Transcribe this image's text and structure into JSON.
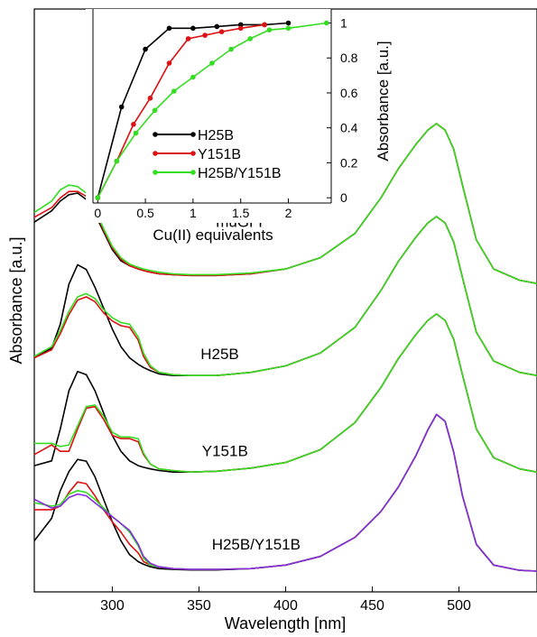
{
  "chart_data": [
    {
      "type": "line",
      "xlabel": "Wavelength [nm]",
      "ylabel": "Absorbance [a.u.]",
      "xlim": [
        255,
        545
      ],
      "x_ticks": [
        300,
        350,
        400,
        450,
        500
      ],
      "y_ticks_labeled": false,
      "grid": false,
      "offset_stacked": true,
      "x": [
        255,
        265,
        270,
        275,
        280,
        285,
        290,
        295,
        300,
        305,
        310,
        315,
        318,
        322,
        327,
        335,
        345,
        360,
        380,
        400,
        420,
        440,
        455,
        465,
        475,
        482,
        487,
        492,
        497,
        502,
        510,
        520,
        535,
        545
      ],
      "series": [
        {
          "key": "muGFP-Cu",
          "panel_label": "muGFP",
          "color": "#000000",
          "label_at_x": 375,
          "label_anchor": 0.35,
          "values": [
            0.39,
            0.46,
            0.52,
            0.56,
            0.57,
            0.53,
            0.44,
            0.33,
            0.22,
            0.15,
            0.12,
            0.1,
            0.09,
            0.08,
            0.07,
            0.065,
            0.06,
            0.06,
            0.07,
            0.1,
            0.17,
            0.32,
            0.54,
            0.72,
            0.87,
            0.96,
            1.0,
            0.96,
            0.84,
            0.62,
            0.28,
            0.1,
            0.03,
            0.01
          ]
        },
        {
          "key": "muGFP-Cu-red",
          "color": "#dd1111",
          "values": [
            0.42,
            0.48,
            0.54,
            0.58,
            0.58,
            0.55,
            0.46,
            0.34,
            0.23,
            0.16,
            0.12,
            0.1,
            0.09,
            0.08,
            0.07,
            0.065,
            0.06,
            0.06,
            0.07,
            0.1,
            0.17,
            0.32,
            0.54,
            0.72,
            0.87,
            0.96,
            1.0,
            0.96,
            0.84,
            0.62,
            0.28,
            0.1,
            0.03,
            0.01
          ]
        },
        {
          "key": "muGFP-Cu-green",
          "color": "#33dd22",
          "values": [
            0.45,
            0.52,
            0.59,
            0.62,
            0.61,
            0.57,
            0.47,
            0.35,
            0.24,
            0.17,
            0.13,
            0.11,
            0.1,
            0.09,
            0.08,
            0.07,
            0.065,
            0.065,
            0.075,
            0.1,
            0.17,
            0.32,
            0.54,
            0.72,
            0.87,
            0.96,
            1.0,
            0.96,
            0.84,
            0.62,
            0.28,
            0.1,
            0.03,
            0.01
          ]
        },
        {
          "key": "H25B-Cu",
          "panel_label": "H25B",
          "color": "#000000",
          "label_at_x": 362,
          "label_anchor": 0.1,
          "values": [
            0.12,
            0.18,
            0.33,
            0.58,
            0.7,
            0.67,
            0.56,
            0.43,
            0.3,
            0.19,
            0.12,
            0.08,
            0.06,
            0.04,
            0.02,
            0.01,
            0.01,
            0.01,
            0.03,
            0.07,
            0.15,
            0.31,
            0.54,
            0.72,
            0.87,
            0.96,
            1.0,
            0.96,
            0.84,
            0.62,
            0.28,
            0.1,
            0.03,
            0.01
          ]
        },
        {
          "key": "H25B-Cu-red",
          "color": "#dd1111",
          "values": [
            0.12,
            0.17,
            0.27,
            0.39,
            0.48,
            0.5,
            0.47,
            0.4,
            0.35,
            0.32,
            0.31,
            0.23,
            0.13,
            0.06,
            0.03,
            0.015,
            0.01,
            0.01,
            0.03,
            0.07,
            0.15,
            0.31,
            0.54,
            0.72,
            0.87,
            0.96,
            1.0,
            0.96,
            0.84,
            0.62,
            0.28,
            0.1,
            0.03,
            0.01
          ]
        },
        {
          "key": "H25B-Cu-green",
          "color": "#33dd22",
          "values": [
            0.13,
            0.19,
            0.29,
            0.41,
            0.5,
            0.52,
            0.49,
            0.42,
            0.37,
            0.34,
            0.33,
            0.25,
            0.15,
            0.07,
            0.03,
            0.015,
            0.01,
            0.01,
            0.03,
            0.07,
            0.15,
            0.31,
            0.54,
            0.72,
            0.87,
            0.96,
            1.0,
            0.96,
            0.84,
            0.62,
            0.28,
            0.1,
            0.03,
            0.01
          ]
        },
        {
          "key": "Y151B-Cu",
          "panel_label": "Y151B",
          "color": "#000000",
          "label_at_x": 365,
          "label_anchor": 0.1,
          "values": [
            0.05,
            0.08,
            0.28,
            0.52,
            0.64,
            0.62,
            0.52,
            0.38,
            0.24,
            0.14,
            0.08,
            0.05,
            0.04,
            0.03,
            0.02,
            0.01,
            0.01,
            0.015,
            0.035,
            0.07,
            0.15,
            0.32,
            0.54,
            0.72,
            0.87,
            0.96,
            1.0,
            0.96,
            0.84,
            0.62,
            0.28,
            0.1,
            0.03,
            0.01
          ]
        },
        {
          "key": "Y151B-Cu-red",
          "color": "#dd1111",
          "values": [
            0.12,
            0.18,
            0.14,
            0.14,
            0.28,
            0.41,
            0.42,
            0.34,
            0.24,
            0.22,
            0.22,
            0.2,
            0.12,
            0.06,
            0.03,
            0.02,
            0.01,
            0.015,
            0.035,
            0.07,
            0.15,
            0.32,
            0.54,
            0.72,
            0.87,
            0.96,
            1.0,
            0.96,
            0.84,
            0.62,
            0.28,
            0.1,
            0.03,
            0.01
          ]
        },
        {
          "key": "Y151B-Cu-green",
          "color": "#33dd22",
          "values": [
            0.19,
            0.19,
            0.17,
            0.18,
            0.3,
            0.42,
            0.43,
            0.36,
            0.26,
            0.23,
            0.23,
            0.22,
            0.13,
            0.06,
            0.03,
            0.02,
            0.01,
            0.015,
            0.035,
            0.07,
            0.15,
            0.32,
            0.54,
            0.72,
            0.87,
            0.96,
            1.0,
            0.96,
            0.84,
            0.62,
            0.28,
            0.1,
            0.03,
            0.01
          ]
        },
        {
          "key": "H25B/Y151B-Cu",
          "panel_label": "H25B/Y151B",
          "color": "#000000",
          "label_at_x": 383,
          "label_anchor": 0.12,
          "values": [
            0.18,
            0.31,
            0.47,
            0.58,
            0.65,
            0.64,
            0.55,
            0.42,
            0.29,
            0.18,
            0.1,
            0.06,
            0.045,
            0.03,
            0.02,
            0.015,
            0.012,
            0.012,
            0.02,
            0.04,
            0.09,
            0.2,
            0.35,
            0.49,
            0.67,
            0.82,
            0.91,
            0.87,
            0.69,
            0.44,
            0.16,
            0.04,
            0.01,
            0.005
          ]
        },
        {
          "key": "H25B/Y151B-Cu-red",
          "color": "#dd1111",
          "values": [
            0.36,
            0.36,
            0.38,
            0.46,
            0.52,
            0.51,
            0.44,
            0.36,
            0.29,
            0.23,
            0.16,
            0.11,
            0.06,
            0.04,
            0.03,
            0.02,
            0.015,
            0.015,
            0.02,
            0.04,
            0.09,
            0.2,
            0.35,
            0.49,
            0.67,
            0.82,
            0.91,
            0.87,
            0.69,
            0.44,
            0.16,
            0.04,
            0.01,
            0.005
          ]
        },
        {
          "key": "H25B/Y151B-Cu-green",
          "color": "#33dd22",
          "values": [
            0.4,
            0.38,
            0.39,
            0.45,
            0.47,
            0.46,
            0.42,
            0.37,
            0.32,
            0.28,
            0.23,
            0.15,
            0.08,
            0.04,
            0.03,
            0.02,
            0.015,
            0.015,
            0.02,
            0.04,
            0.09,
            0.2,
            0.35,
            0.49,
            0.67,
            0.82,
            0.91,
            0.87,
            0.69,
            0.44,
            0.16,
            0.04,
            0.01,
            0.005
          ]
        },
        {
          "key": "H25B/Y151B-Cu-purple",
          "color": "#8a2be2",
          "values": [
            0.42,
            0.37,
            0.38,
            0.43,
            0.45,
            0.44,
            0.4,
            0.36,
            0.32,
            0.28,
            0.24,
            0.16,
            0.09,
            0.05,
            0.03,
            0.02,
            0.015,
            0.015,
            0.02,
            0.04,
            0.09,
            0.2,
            0.35,
            0.49,
            0.67,
            0.82,
            0.91,
            0.87,
            0.69,
            0.44,
            0.16,
            0.04,
            0.01,
            0.005
          ]
        }
      ]
    },
    {
      "type": "line",
      "xlabel": "Cu(II) equivalents",
      "ylabel": "Absorbance [a.u.]",
      "xlim": [
        -0.05,
        2.45
      ],
      "ylim": [
        -0.03,
        1.08
      ],
      "x_ticks": [
        0,
        0.5,
        1,
        1.5,
        2
      ],
      "x_tick_labels": [
        "0",
        "0.5",
        "1",
        "1.5",
        "2"
      ],
      "y_ticks": [
        0,
        0.2,
        0.4,
        0.6,
        0.8,
        1
      ],
      "y_tick_labels": [
        "0",
        "0.2",
        "0.4",
        "0.6",
        "0.8",
        "1"
      ],
      "grid": false,
      "legend_position": "center",
      "series": [
        {
          "name": "H25B",
          "color": "#000000",
          "x": [
            0,
            0.25,
            0.5,
            0.75,
            1.0,
            1.25,
            1.5,
            1.75,
            2.0
          ],
          "values": [
            0,
            0.52,
            0.85,
            0.97,
            0.97,
            0.98,
            0.99,
            0.99,
            1.0
          ]
        },
        {
          "name": "Y151B",
          "color": "#dd1111",
          "x": [
            0,
            0.2,
            0.375,
            0.55,
            0.75,
            0.95,
            1.125,
            1.3,
            1.5,
            1.75
          ],
          "values": [
            0,
            0.21,
            0.42,
            0.57,
            0.77,
            0.91,
            0.93,
            0.95,
            0.97,
            0.99
          ]
        },
        {
          "name": "H25B/Y151B",
          "color": "#33dd22",
          "x": [
            0,
            0.2,
            0.4,
            0.6,
            0.8,
            1.0,
            1.2,
            1.4,
            1.6,
            1.8,
            2.0,
            2.4
          ],
          "values": [
            0,
            0.21,
            0.37,
            0.5,
            0.61,
            0.69,
            0.77,
            0.85,
            0.91,
            0.96,
            0.97,
            1.0
          ]
        }
      ]
    }
  ]
}
